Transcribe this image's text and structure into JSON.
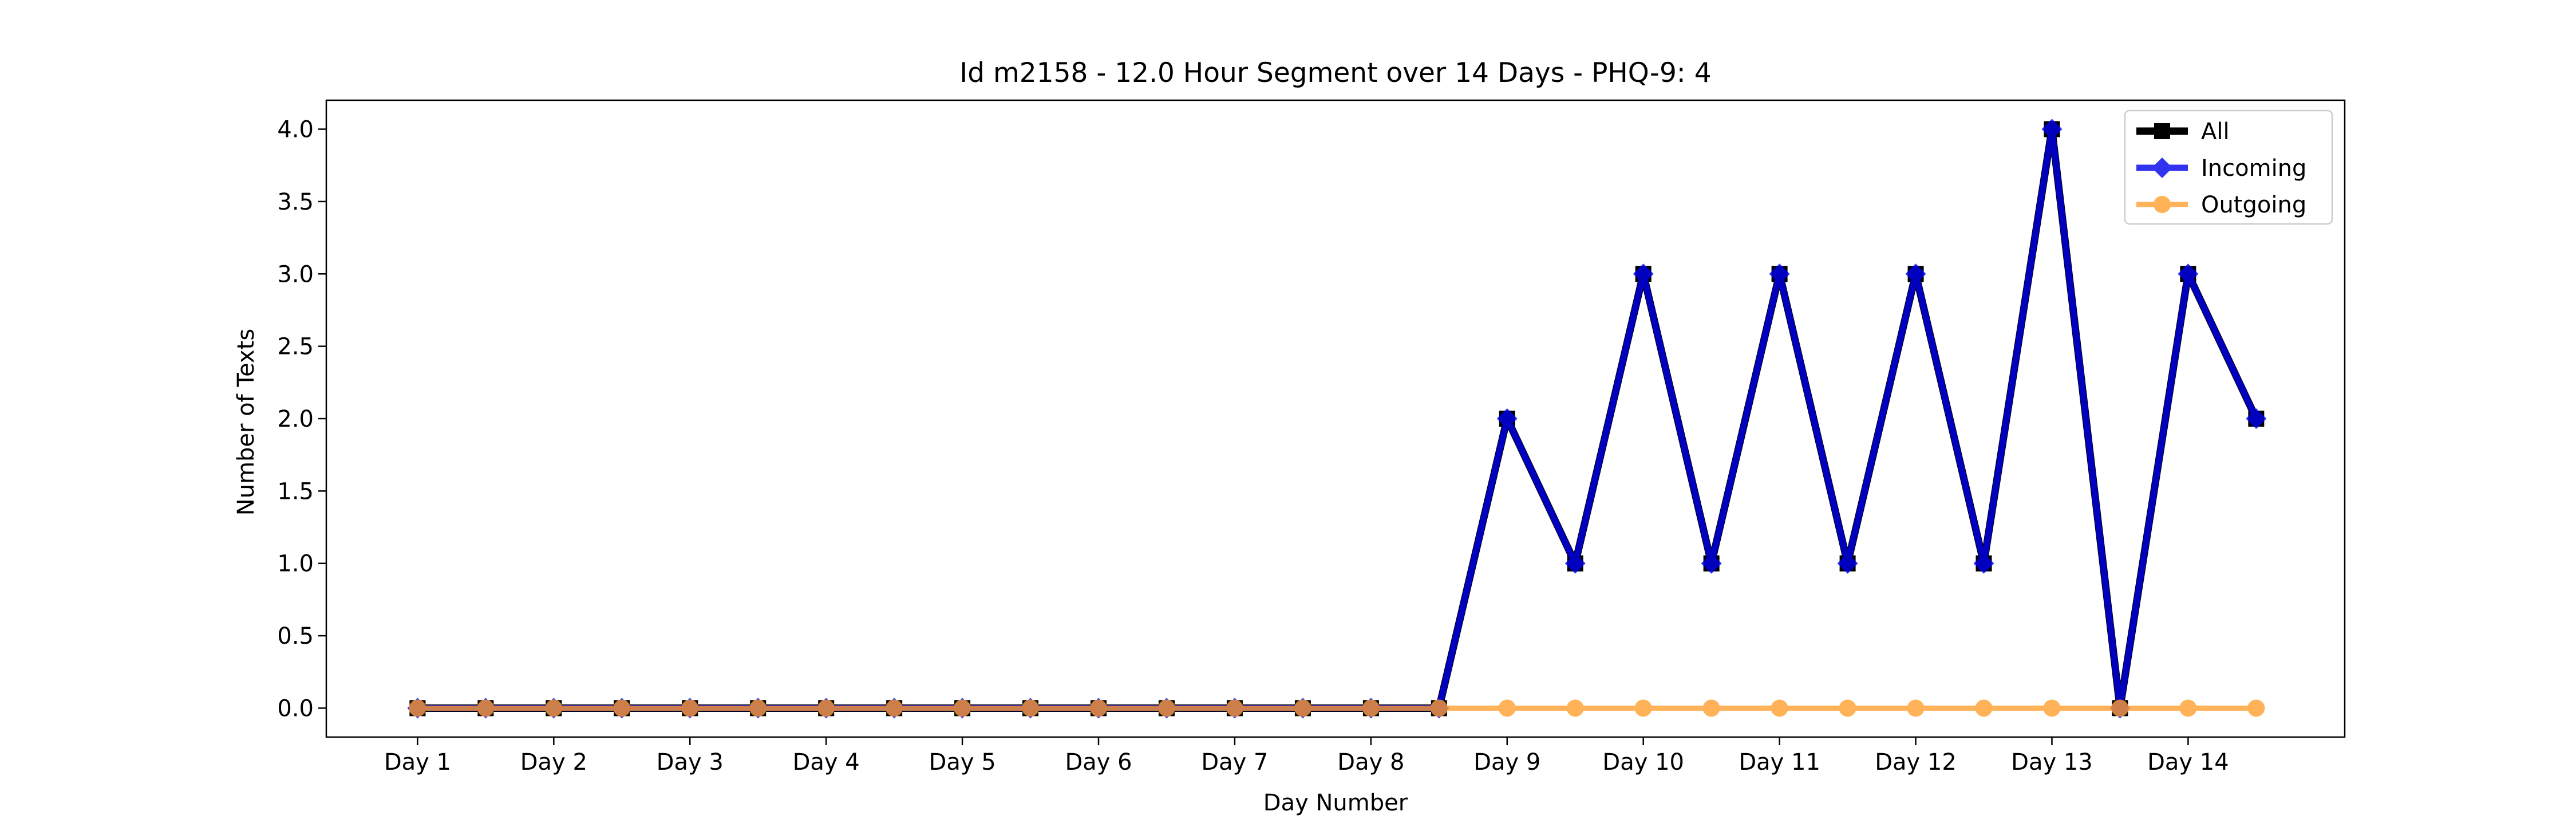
{
  "chart_data": {
    "type": "line",
    "title": "Id m2158 - 12.0 Hour Segment over 14 Days - PHQ-9: 4",
    "xlabel": "Day Number",
    "ylabel": "Number of Texts",
    "categories": [
      "Day 1",
      "Day 2",
      "Day 3",
      "Day 4",
      "Day 5",
      "Day 6",
      "Day 7",
      "Day 8",
      "Day 9",
      "Day 10",
      "Day 11",
      "Day 12",
      "Day 13",
      "Day 14"
    ],
    "x": [
      1,
      1.5,
      2,
      2.5,
      3,
      3.5,
      4,
      4.5,
      5,
      5.5,
      6,
      6.5,
      7,
      7.5,
      8,
      8.5,
      9,
      9.5,
      10,
      10.5,
      11,
      11.5,
      12,
      12.5,
      13,
      13.5,
      14,
      14.5
    ],
    "xlim": [
      0.33,
      15.15
    ],
    "ylim": [
      -0.2,
      4.2
    ],
    "yticks": [
      "0.0",
      "0.5",
      "1.0",
      "1.5",
      "2.0",
      "2.5",
      "3.0",
      "3.5",
      "4.0"
    ],
    "grid": false,
    "legend_position": "upper right",
    "series": [
      {
        "name": "All",
        "color": "#000000",
        "marker": "square",
        "values": [
          0,
          0,
          0,
          0,
          0,
          0,
          0,
          0,
          0,
          0,
          0,
          0,
          0,
          0,
          0,
          0,
          2,
          1,
          3,
          1,
          3,
          1,
          3,
          1,
          4,
          0,
          3,
          2
        ]
      },
      {
        "name": "Incoming",
        "color": "#0000ee",
        "marker": "diamond",
        "values": [
          0,
          0,
          0,
          0,
          0,
          0,
          0,
          0,
          0,
          0,
          0,
          0,
          0,
          0,
          0,
          0,
          2,
          1,
          3,
          1,
          3,
          1,
          3,
          1,
          4,
          0,
          3,
          2
        ]
      },
      {
        "name": "Outgoing",
        "color": "#ff9f2e",
        "marker": "circle",
        "values": [
          0,
          0,
          0,
          0,
          0,
          0,
          0,
          0,
          0,
          0,
          0,
          0,
          0,
          0,
          0,
          0,
          0,
          0,
          0,
          0,
          0,
          0,
          0,
          0,
          0,
          0,
          0,
          0
        ]
      }
    ]
  }
}
